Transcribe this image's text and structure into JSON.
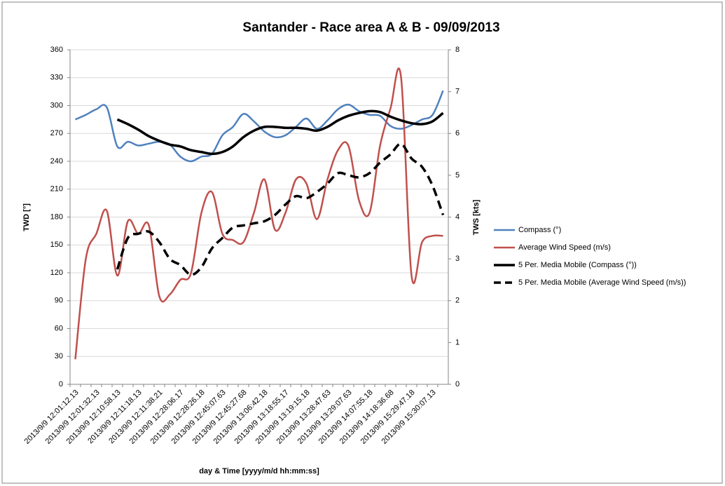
{
  "chart_data": {
    "type": "line",
    "title": "Santander - Race area A & B - 09/09/2013",
    "x_label": "day & Time [yyyy/m/d hh:mm:ss]",
    "y_label": "TWD [°]",
    "y2_label": "TWS [kts]",
    "categories": [
      "2013/9/9 12:01:12.13",
      null,
      "2013/9/9 12:01:32.13",
      null,
      "2013/9/9 12:10:58.13",
      null,
      "2013/9/9 12:11:18.13",
      null,
      "2013/9/9 12:11:38.21",
      null,
      "2013/9/9 12:28:06.17",
      null,
      "2013/9/9 12:28:26.18",
      null,
      "2013/9/9 12:45:07.63",
      null,
      "2013/9/9 12:45:27.68",
      null,
      "2013/9/9 13:06:42.18",
      null,
      "2013/9/9 13:18:55.17",
      null,
      "2013/9/9 13:19:15.18",
      null,
      "2013/9/9 13:28:47.63",
      null,
      "2013/9/9 13:29:07.63",
      null,
      "2013/9/9 14:07:55.18",
      null,
      "2013/9/9 14:18:36.68",
      null,
      "2013/9/9 15:29:47.18",
      null,
      "2013/9/9 15:30:07.13",
      null
    ],
    "ylim": [
      0,
      360
    ],
    "yticks": [
      0,
      30,
      60,
      90,
      120,
      150,
      180,
      210,
      240,
      270,
      300,
      330,
      360
    ],
    "y2lim": [
      0,
      8
    ],
    "y2ticks": [
      0,
      1,
      2,
      3,
      4,
      5,
      6,
      7,
      8
    ],
    "grid": true,
    "series": [
      {
        "name": "Compass (°)",
        "color": "#4f81bd",
        "dash": false,
        "values": [
          285,
          290,
          296,
          298,
          256,
          261,
          257,
          259,
          261,
          258,
          245,
          240,
          245,
          248,
          268,
          277,
          291,
          283,
          272,
          266,
          268,
          277,
          286,
          275,
          284,
          296,
          301,
          294,
          290,
          289,
          278,
          275,
          279,
          285,
          290,
          316
        ]
      },
      {
        "name": "Average Wind Speed (m/s)",
        "color": "#c0504d",
        "axis": "y2",
        "dash": false,
        "values": [
          0.6,
          3.0,
          3.6,
          4.15,
          2.6,
          3.9,
          3.6,
          3.8,
          2.1,
          2.15,
          2.5,
          2.65,
          4.1,
          4.6,
          3.6,
          3.45,
          3.4,
          4.1,
          4.9,
          3.7,
          4.1,
          4.9,
          4.8,
          3.95,
          4.9,
          5.6,
          5.7,
          4.4,
          4.1,
          5.7,
          6.6,
          7.35,
          2.6,
          3.4,
          3.55,
          3.55
        ]
      },
      {
        "name": "5 Per. Media Mobile (Compass (°))",
        "color": "#000000",
        "dash": false,
        "values": [
          null,
          null,
          null,
          null,
          285,
          280,
          274,
          267,
          262,
          258,
          256,
          252,
          250,
          248,
          250,
          256,
          266,
          273,
          277,
          277,
          276,
          276,
          275,
          273,
          277,
          284,
          289,
          292,
          294,
          293,
          288,
          284,
          281,
          280,
          283,
          292
        ]
      },
      {
        "name": "5 Per. Media Mobile (Average Wind Speed (m/s))",
        "color": "#000000",
        "axis": "y2",
        "dash": true,
        "values": [
          null,
          null,
          null,
          null,
          2.75,
          3.5,
          3.6,
          3.65,
          3.4,
          3.0,
          2.85,
          2.62,
          2.8,
          3.25,
          3.5,
          3.75,
          3.8,
          3.85,
          3.9,
          4.05,
          4.3,
          4.5,
          4.45,
          4.6,
          4.8,
          5.05,
          5.0,
          4.95,
          5.05,
          5.3,
          5.5,
          5.75,
          5.4,
          5.2,
          4.75,
          4.05
        ]
      }
    ]
  }
}
